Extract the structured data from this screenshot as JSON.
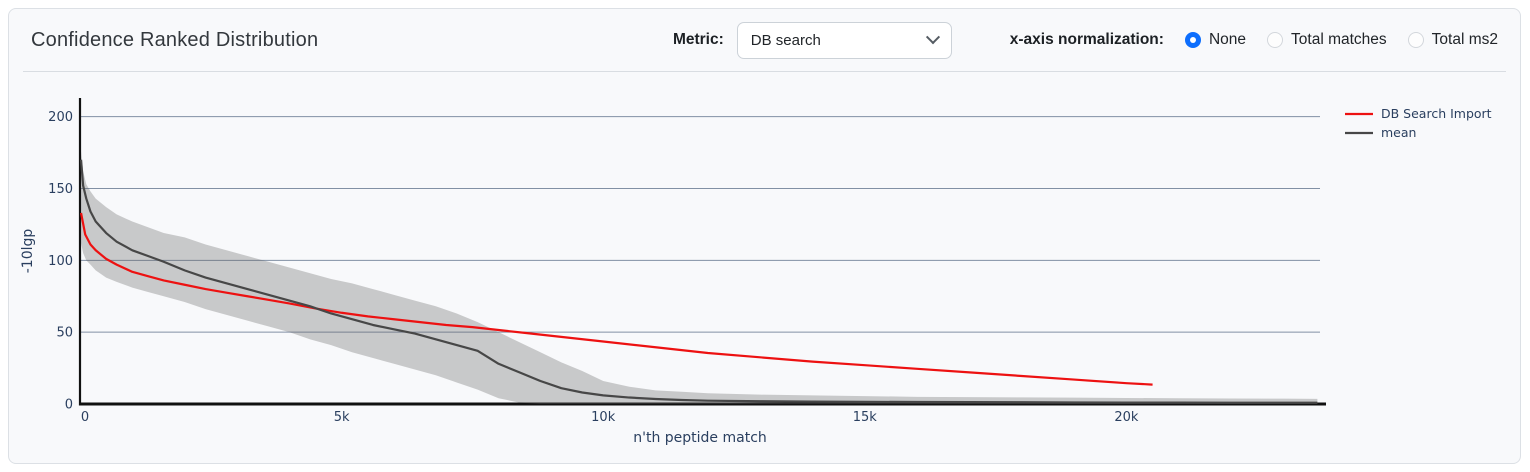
{
  "header": {
    "title": "Confidence Ranked Distribution",
    "metric_label": "Metric:",
    "metric_value": "DB search",
    "normalization_label": "x-axis normalization:",
    "normalization_options": [
      {
        "label": "None",
        "selected": true
      },
      {
        "label": "Total matches",
        "selected": false
      },
      {
        "label": "Total ms2",
        "selected": false
      }
    ]
  },
  "colors": {
    "accent_radio": "#0d6efd",
    "red_series": "#ed1111",
    "mean_series": "#474747",
    "band_fill": "rgba(99,99,99,0.32)",
    "grid_line": "#6d7e96",
    "axis_line": "#111111",
    "chart_text": "#2a3f5f",
    "card_background": "#f8f9fb"
  },
  "chart_data": {
    "type": "line",
    "title": "Confidence Ranked Distribution",
    "xlabel": "n'th peptide match",
    "ylabel": "-10lgp",
    "xlim": [
      0,
      23700
    ],
    "ylim": [
      0,
      213
    ],
    "grid": "horizontal",
    "legend_position": "top-right-outside",
    "x_ticks": [
      {
        "v": 0,
        "label": "0"
      },
      {
        "v": 5000,
        "label": "5k"
      },
      {
        "v": 10000,
        "label": "10k"
      },
      {
        "v": 15000,
        "label": "15k"
      },
      {
        "v": 20000,
        "label": "20k"
      }
    ],
    "y_ticks": [
      {
        "v": 0,
        "label": "0"
      },
      {
        "v": 50,
        "label": "50"
      },
      {
        "v": 100,
        "label": "100"
      },
      {
        "v": 150,
        "label": "150"
      },
      {
        "v": 200,
        "label": "200"
      }
    ],
    "series": [
      {
        "name": "DB Search Import",
        "color": "#ed1111",
        "x": [
          20,
          100,
          200,
          300,
          500,
          700,
          1000,
          1300,
          1600,
          2000,
          2400,
          2800,
          3200,
          3600,
          4000,
          4500,
          5000,
          5500,
          6000,
          6500,
          7000,
          7500,
          8000,
          8500,
          9000,
          9500,
          10000,
          11000,
          12000,
          13000,
          14000,
          15000,
          16000,
          17000,
          18000,
          19000,
          20000,
          20500
        ],
        "y": [
          133,
          118,
          111,
          107,
          101,
          97,
          92,
          89,
          86,
          83,
          80,
          77.5,
          75,
          72.5,
          70,
          66.5,
          63.5,
          61,
          59,
          57,
          55,
          53.5,
          51.5,
          49.5,
          47.5,
          45.5,
          43.5,
          39.5,
          35.5,
          32.5,
          29.5,
          27,
          24.5,
          22,
          19.5,
          17,
          14.5,
          13.5
        ]
      },
      {
        "name": "mean",
        "color": "#474747",
        "x": [
          20,
          60,
          120,
          200,
          300,
          500,
          700,
          1000,
          1300,
          1600,
          2000,
          2400,
          2800,
          3200,
          3600,
          4000,
          4400,
          4800,
          5200,
          5600,
          6000,
          6400,
          6800,
          7200,
          7600,
          8000,
          8400,
          8800,
          9200,
          9600,
          10000,
          10500,
          11000,
          11500,
          12000,
          13000,
          14000,
          15000,
          16000,
          17000,
          18000,
          19000,
          20000,
          21000,
          22000,
          23000,
          23650
        ],
        "y": [
          170,
          152,
          143,
          134,
          127,
          119,
          113,
          107,
          103,
          99,
          93,
          88,
          84,
          80,
          76,
          72,
          68,
          63,
          59,
          55,
          52,
          49,
          45,
          41,
          37,
          28,
          22,
          16,
          11,
          8,
          6,
          4.5,
          3.5,
          2.8,
          2.3,
          1.9,
          1.7,
          1.5,
          1.4,
          1.3,
          1.2,
          1.1,
          1,
          1,
          0.9,
          0.9,
          0.9
        ]
      }
    ],
    "band": {
      "name": "mean std band",
      "color": "rgba(99,99,99,0.32)",
      "x": [
        20,
        60,
        120,
        200,
        300,
        500,
        700,
        1000,
        1300,
        1600,
        2000,
        2400,
        2800,
        3200,
        3600,
        4000,
        4400,
        4800,
        5200,
        5600,
        6000,
        6400,
        6800,
        7200,
        7600,
        8000,
        8400,
        8800,
        9200,
        9600,
        10000,
        10500,
        11000,
        11500,
        12000,
        13000,
        14000,
        15000,
        16000,
        17000,
        18000,
        19000,
        20000,
        21000,
        22000,
        23000,
        23650
      ],
      "upper": [
        176,
        162,
        153,
        148,
        143,
        137,
        132,
        127,
        123,
        119,
        116,
        111,
        107,
        103,
        99,
        95,
        91,
        87,
        84,
        80,
        76,
        72,
        68,
        63,
        57,
        50,
        43,
        36,
        29,
        23,
        16,
        12,
        9.5,
        8.5,
        7.5,
        6.5,
        6,
        5.5,
        5,
        4.8,
        4.6,
        4.4,
        4.2,
        4,
        3.8,
        3.7,
        3.6
      ],
      "lower": [
        112,
        105,
        100,
        97,
        93,
        88,
        85,
        81,
        78,
        75,
        71,
        66,
        62,
        58,
        54,
        50,
        45,
        41,
        36,
        32,
        28,
        24,
        20,
        15,
        10,
        4,
        1,
        0,
        0,
        0,
        0,
        0,
        0,
        0,
        0,
        0,
        0,
        0,
        0,
        0,
        0,
        0,
        0,
        0,
        0,
        0,
        0
      ]
    }
  }
}
